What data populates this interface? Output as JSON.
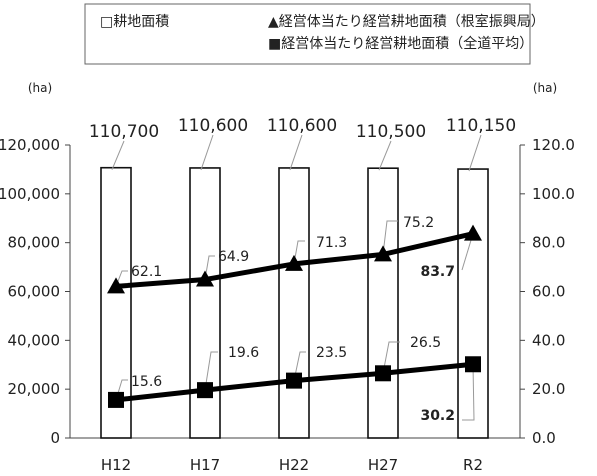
{
  "chart_data": {
    "type": "bar",
    "categories": [
      "H12",
      "H17",
      "H22",
      "H27",
      "R2"
    ],
    "legend": {
      "bar_label": "□耕地面積",
      "nemuro_label": "▲経営体当たり経営耕地面積（根室振興局）",
      "hokkaido_label": "■経営体当たり経営耕地面積（全道平均）"
    },
    "left_axis": {
      "unit": "(ha)",
      "ticks": [
        "0",
        "20,000",
        "40,000",
        "60,000",
        "80,000",
        "100,000",
        "120,000"
      ],
      "ylim": [
        0,
        120000
      ]
    },
    "right_axis": {
      "unit": "(ha)",
      "ticks": [
        "0.0",
        "20.0",
        "40.0",
        "60.0",
        "80.0",
        "100.0",
        "120.0"
      ],
      "ylim": [
        0,
        120
      ]
    },
    "series": [
      {
        "name": "□耕地面積",
        "axis": "left",
        "kind": "bar",
        "values": [
          110700,
          110600,
          110600,
          110500,
          110150
        ],
        "labels": [
          "110,700",
          "110,600",
          "110,600",
          "110,500",
          "110,150"
        ]
      },
      {
        "name": "▲経営体当たり経営耕地面積（根室振興局）",
        "axis": "right",
        "kind": "line",
        "marker": "triangle",
        "values": [
          62.1,
          64.9,
          71.3,
          75.2,
          83.7
        ],
        "labels": [
          "62.1",
          "64.9",
          "71.3",
          "75.2",
          "83.7"
        ]
      },
      {
        "name": "■経営体当たり経営耕地面積（全道平均）",
        "axis": "right",
        "kind": "line",
        "marker": "square",
        "values": [
          15.6,
          19.6,
          23.5,
          26.5,
          30.2
        ],
        "labels": [
          "15.6",
          "19.6",
          "23.5",
          "26.5",
          "30.2"
        ]
      }
    ]
  }
}
